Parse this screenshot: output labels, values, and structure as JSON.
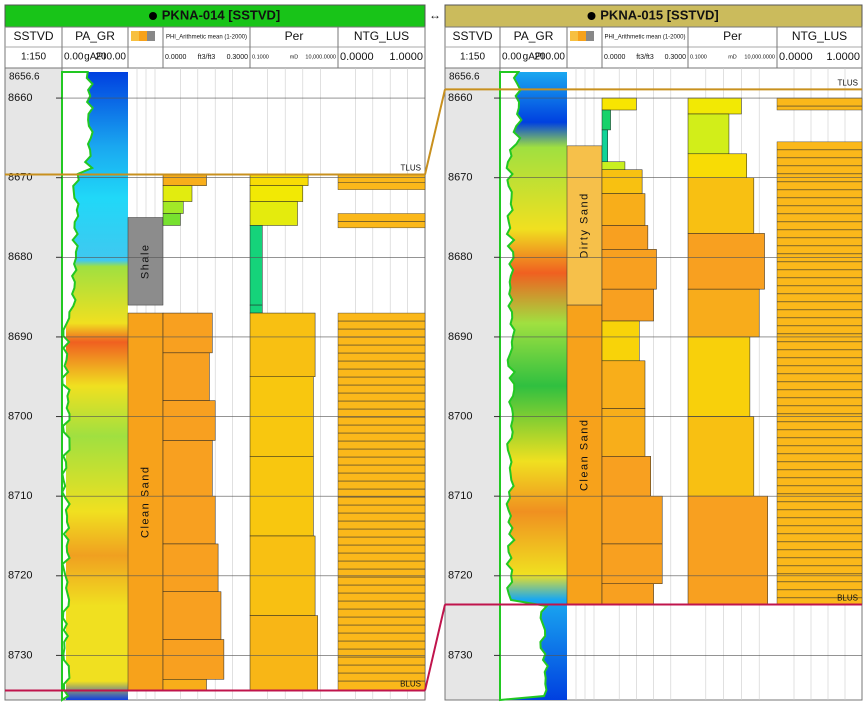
{
  "wells": [
    {
      "title": "PKNA-014 [SSTVD]",
      "track_names": [
        "SSTVD",
        "PA_GR",
        "PHI_Arithmetic mean (1-2000)",
        "Per",
        "NTG_LUS"
      ],
      "depth_scale": "1:150",
      "gr_scale": {
        "min": {
          "value": 0,
          "label": "0.00"
        },
        "unit": "gAPI",
        "max": {
          "value": 200,
          "label": "200.00"
        }
      },
      "phi_scale": {
        "min": {
          "value": 0,
          "label": "0.0000"
        },
        "unit": "ft3/ft3",
        "max": {
          "value": 0.3,
          "label": "0.3000"
        }
      },
      "per_scale": {
        "min": {
          "value": 0.1,
          "label": "0.1000"
        },
        "unit": "mD",
        "max": {
          "value": 10000,
          "label": "10,000.0000"
        }
      },
      "ntg_scale": {
        "min": {
          "value": 0,
          "label": "0.0000"
        },
        "max": {
          "value": 1,
          "label": "1.0000"
        }
      },
      "depth_range": [
        8656.6,
        8735.6
      ],
      "depth_ticks": [
        8660,
        8670,
        8680,
        8690,
        8700,
        8710,
        8720,
        8730
      ],
      "markers": [
        {
          "name": "TLUS",
          "depth": 8669.6,
          "color": "#c8901e"
        },
        {
          "name": "BLUS",
          "depth": 8734.4,
          "color": "#c0144c"
        }
      ],
      "zones": [
        {
          "label": "Shale",
          "top": 8675,
          "base": 8686,
          "color": "#8c8c8c"
        },
        {
          "label": "Clean Sand",
          "top": 8687,
          "base": 8734.4,
          "color": "#f7a21b"
        }
      ],
      "phi": [
        [
          8669.6,
          8671,
          0.15
        ],
        [
          8671,
          8673,
          0.1
        ],
        [
          8673,
          8674.5,
          0.07
        ],
        [
          8674.5,
          8676,
          0.06
        ],
        [
          8687,
          8692,
          0.17
        ],
        [
          8692,
          8698,
          0.16
        ],
        [
          8698,
          8703,
          0.18
        ],
        [
          8703,
          8710,
          0.17
        ],
        [
          8710,
          8716,
          0.18
        ],
        [
          8716,
          8722,
          0.19
        ],
        [
          8722,
          8728,
          0.2
        ],
        [
          8728,
          8733,
          0.21
        ],
        [
          8733,
          8734.4,
          0.15
        ]
      ],
      "per": [
        [
          8669.6,
          8671,
          200
        ],
        [
          8671,
          8673,
          100
        ],
        [
          8673,
          8676,
          50
        ],
        [
          8676,
          8686,
          0.5
        ],
        [
          8686,
          8687,
          0.5
        ],
        [
          8687,
          8695,
          500
        ],
        [
          8695,
          8705,
          400
        ],
        [
          8705,
          8715,
          400
        ],
        [
          8715,
          8725,
          500
        ],
        [
          8725,
          8734.4,
          700
        ]
      ],
      "ntg": [
        [
          8669.6,
          8671.5,
          1
        ],
        [
          8674.5,
          8676.3,
          1
        ],
        [
          8687,
          8734.4,
          1
        ]
      ]
    },
    {
      "title": "PKNA-015 [SSTVD]",
      "track_names": [
        "SSTVD",
        "PA_GR",
        "PHI_Arithmetic mean (1-2000)",
        "Per",
        "NTG_LUS"
      ],
      "depth_scale": "1:150",
      "gr_scale": {
        "min": {
          "value": 0,
          "label": "0.00"
        },
        "unit": "gAPI",
        "max": {
          "value": 200,
          "label": "200.00"
        }
      },
      "phi_scale": {
        "min": {
          "value": 0,
          "label": "0.0000"
        },
        "unit": "ft3/ft3",
        "max": {
          "value": 0.3,
          "label": "0.3000"
        }
      },
      "per_scale": {
        "min": {
          "value": 0.1,
          "label": "0.1000"
        },
        "unit": "mD",
        "max": {
          "value": 10000,
          "label": "10,000.0000"
        }
      },
      "ntg_scale": {
        "min": {
          "value": 0,
          "label": "0.0000"
        },
        "max": {
          "value": 1,
          "label": "1.0000"
        }
      },
      "depth_range": [
        8656.6,
        8735.6
      ],
      "depth_ticks": [
        8660,
        8670,
        8680,
        8690,
        8700,
        8710,
        8720,
        8730
      ],
      "markers": [
        {
          "name": "TLUS",
          "depth": 8658.9,
          "color": "#c8901e"
        },
        {
          "name": "BLUS",
          "depth": 8723.6,
          "color": "#c0144c"
        }
      ],
      "zones": [
        {
          "label": "Dirty Sand",
          "top": 8666,
          "base": 8686,
          "color": "#f6c04a"
        },
        {
          "label": "Clean Sand",
          "top": 8686,
          "base": 8723.6,
          "color": "#f7a21b"
        }
      ],
      "phi": [
        [
          8660,
          8661.5,
          0.12
        ],
        [
          8661.5,
          8664,
          0.03
        ],
        [
          8664,
          8668,
          0.02
        ],
        [
          8668,
          8669,
          0.08
        ],
        [
          8669,
          8672,
          0.14
        ],
        [
          8672,
          8676,
          0.15
        ],
        [
          8676,
          8679,
          0.16
        ],
        [
          8679,
          8684,
          0.19
        ],
        [
          8684,
          8688,
          0.18
        ],
        [
          8688,
          8693,
          0.13
        ],
        [
          8693,
          8699,
          0.15
        ],
        [
          8699,
          8705,
          0.15
        ],
        [
          8705,
          8710,
          0.17
        ],
        [
          8710,
          8716,
          0.21
        ],
        [
          8716,
          8721,
          0.21
        ],
        [
          8721,
          8723.6,
          0.18
        ]
      ],
      "per": [
        [
          8660,
          8662,
          100
        ],
        [
          8662,
          8667,
          20
        ],
        [
          8667,
          8670,
          200
        ],
        [
          8670,
          8677,
          500
        ],
        [
          8677,
          8684,
          2000
        ],
        [
          8684,
          8690,
          1000
        ],
        [
          8690,
          8700,
          300
        ],
        [
          8700,
          8710,
          500
        ],
        [
          8710,
          8723.6,
          3000
        ]
      ],
      "ntg": [
        [
          8660,
          8661.5,
          1
        ],
        [
          8665.5,
          8723.6,
          1
        ]
      ]
    }
  ]
}
